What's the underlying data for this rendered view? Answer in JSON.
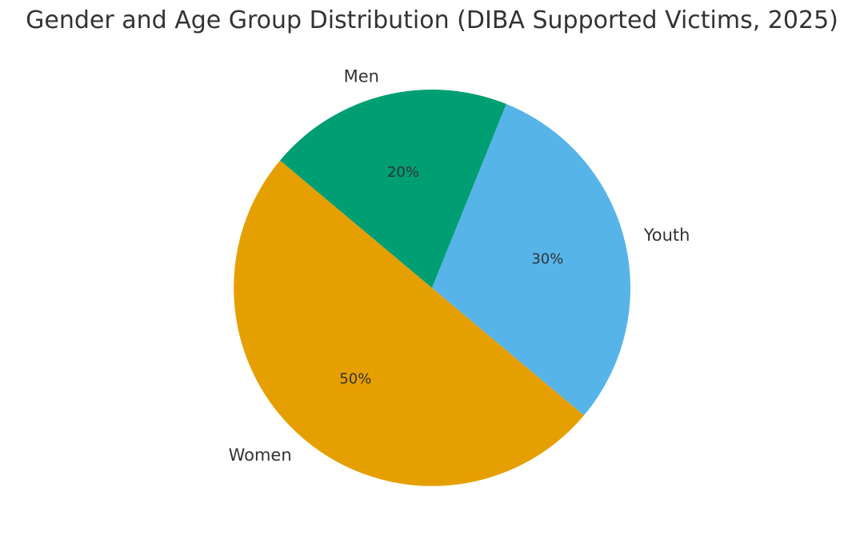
{
  "chart_data": {
    "type": "pie",
    "title": "Gender and Age Group Distribution (DIBA Supported Victims, 2025)",
    "slices": [
      {
        "label": "Women",
        "value": 50,
        "pct_label": "50%",
        "color": "#E69F00"
      },
      {
        "label": "Youth",
        "value": 30,
        "pct_label": "30%",
        "color": "#56B4E9"
      },
      {
        "label": "Men",
        "value": 20,
        "pct_label": "20%",
        "color": "#009E73"
      }
    ],
    "start_angle_deg": 140,
    "direction": "counterclockwise"
  }
}
